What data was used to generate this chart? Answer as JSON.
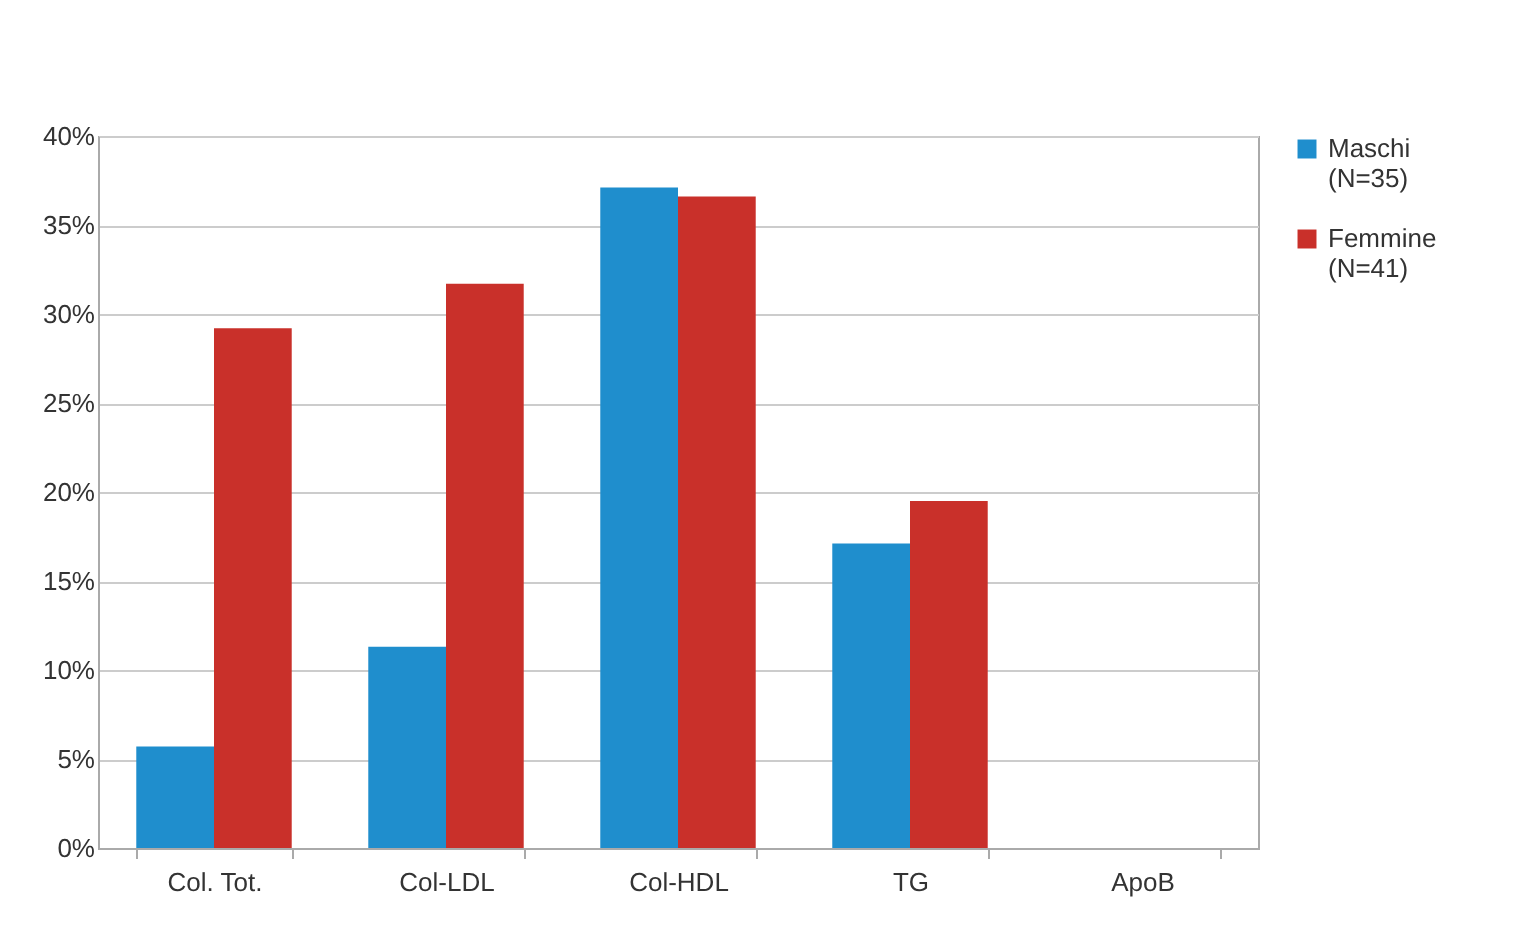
{
  "chart_data": {
    "type": "bar",
    "categories": [
      "Col. Tot.",
      "Col-LDL",
      "Col-HDL",
      "TG",
      "ApoB"
    ],
    "series": [
      {
        "name": "Maschi (N=35)",
        "color": "#1f8ecd",
        "values": [
          5.7,
          11.3,
          37.1,
          17.1,
          null
        ]
      },
      {
        "name": "Femmine (N=41)",
        "color": "#c9302a",
        "values": [
          29.2,
          31.7,
          36.6,
          19.5,
          null
        ]
      }
    ],
    "ylim": [
      0,
      40
    ],
    "yticks": [
      {
        "value": 0,
        "label": "0%"
      },
      {
        "value": 5,
        "label": "5%"
      },
      {
        "value": 10,
        "label": "10%"
      },
      {
        "value": 15,
        "label": "15%"
      },
      {
        "value": 20,
        "label": "20%"
      },
      {
        "value": 25,
        "label": "25%"
      },
      {
        "value": 30,
        "label": "30%"
      },
      {
        "value": 35,
        "label": "35%"
      },
      {
        "value": 40,
        "label": "40%"
      }
    ],
    "grid": "y",
    "legend": "right"
  }
}
